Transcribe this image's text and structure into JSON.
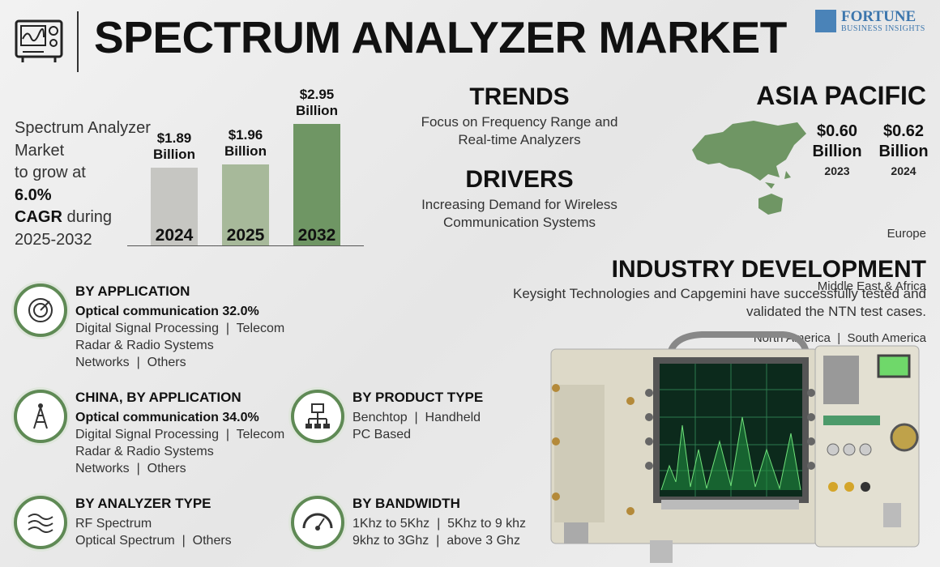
{
  "header": {
    "title": "SPECTRUM ANALYZER MARKET",
    "brand": "FORTUNE",
    "brand_sub": "BUSINESS INSIGHTS"
  },
  "summary": {
    "line1": "Spectrum Analyzer",
    "line2": "Market",
    "line3": "to grow at",
    "cagr": "6.0%",
    "cagr_label": "CAGR",
    "during": "during",
    "period": "2025-2032"
  },
  "chart_data": {
    "type": "bar",
    "categories": [
      "2024",
      "2025",
      "2032"
    ],
    "values": [
      1.89,
      1.96,
      2.95
    ],
    "value_labels": [
      "$1.89 Billion",
      "$1.96 Billion",
      "$2.95 Billion"
    ],
    "colors": [
      "#c6c6c2",
      "#a7b99a",
      "#6f9664"
    ]
  },
  "trends": {
    "title": "TRENDS",
    "text": "Focus on Frequency Range and Real-time Analyzers"
  },
  "drivers": {
    "title": "DRIVERS",
    "text": "Increasing Demand for Wireless Communication Systems"
  },
  "asia_pacific": {
    "title": "ASIA PACIFIC",
    "items": [
      {
        "value": "$0.60 Billion",
        "year": "2023"
      },
      {
        "value": "$0.62 Billion",
        "year": "2024"
      }
    ],
    "regions": [
      "Europe",
      "Middle East & Africa",
      "North America  |  South America"
    ]
  },
  "industry_development": {
    "title": "INDUSTRY DEVELOPMENT",
    "text": "Keysight Technologies and Capgemini have successfully tested and validated the NTN test cases."
  },
  "segments": [
    {
      "title": "BY APPLICATION",
      "highlight": "Optical communication 32.0%",
      "lines": [
        "Digital Signal Processing  |  Telecom",
        "Radar & Radio Systems",
        "Networks  |  Others"
      ]
    },
    {
      "title": "CHINA, BY APPLICATION",
      "highlight": "Optical communication 34.0%",
      "lines": [
        "Digital Signal Processing  |  Telecom",
        "Radar & Radio Systems",
        "Networks  |  Others"
      ]
    },
    {
      "title": "BY ANALYZER TYPE",
      "lines": [
        "RF Spectrum",
        "Optical Spectrum  |  Others"
      ]
    },
    {
      "title": "BY PRODUCT TYPE",
      "lines": [
        "Benchtop  |  Handheld",
        "PC Based"
      ]
    },
    {
      "title": "BY BANDWIDTH",
      "lines": [
        "1Khz to 5Khz  |  5Khz to 9 khz",
        "9khz to 3Ghz  |  above 3 Ghz"
      ]
    }
  ]
}
